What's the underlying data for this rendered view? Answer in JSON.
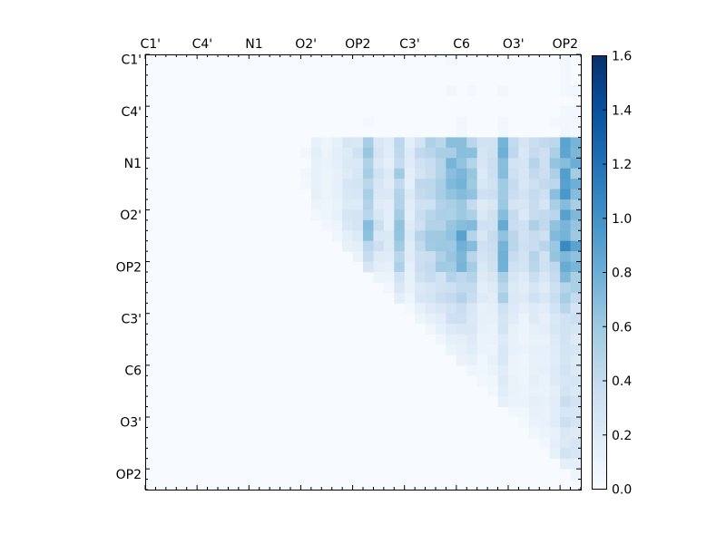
{
  "chart_data": {
    "type": "heatmap",
    "title": "",
    "xlabel": "",
    "ylabel": "",
    "grid": false,
    "n": 42,
    "x_tick_labels": [
      "C1'",
      "C4'",
      "N1",
      "O2'",
      "OP2",
      "C3'",
      "C6",
      "O3'",
      "OP2"
    ],
    "y_tick_labels": [
      "C1'",
      "C4'",
      "N1",
      "O2'",
      "OP2",
      "C3'",
      "C6",
      "O3'",
      "OP2"
    ],
    "colorbar": {
      "min": 0.0,
      "max": 1.6,
      "ticks": [
        "0.0",
        "0.2",
        "0.4",
        "0.6",
        "0.8",
        "1.0",
        "1.2",
        "1.4",
        "1.6"
      ],
      "colormap": "Blues",
      "low_color": "#f7fbff",
      "high_color": "#08306b"
    },
    "row_profiles": [
      0.05,
      0.05,
      0.05,
      0.06,
      0.05,
      0.05,
      0.06,
      0.06,
      0.9,
      0.95,
      0.9,
      0.9,
      0.9,
      0.95,
      0.8,
      0.9,
      1.0,
      1.0,
      1.0,
      0.9,
      0.9,
      0.7,
      0.6,
      0.6,
      0.45,
      0.4,
      0.35,
      0.3,
      0.3,
      0.3,
      0.3,
      0.3,
      0.3,
      0.35,
      0.35,
      0.35,
      0.3,
      0.35,
      0.45,
      0.3,
      0.2,
      0.1
    ],
    "col_profiles": [
      0.0,
      0.03,
      0.02,
      0.03,
      0.04,
      0.02,
      0.03,
      0.02,
      0.02,
      0.02,
      0.02,
      0.03,
      0.02,
      0.02,
      0.04,
      0.05,
      0.15,
      0.1,
      0.15,
      0.25,
      0.3,
      0.6,
      0.3,
      0.2,
      0.55,
      0.2,
      0.4,
      0.5,
      0.55,
      0.7,
      0.75,
      0.6,
      0.3,
      0.35,
      0.75,
      0.4,
      0.3,
      0.45,
      0.4,
      0.6,
      0.9,
      0.75
    ]
  }
}
